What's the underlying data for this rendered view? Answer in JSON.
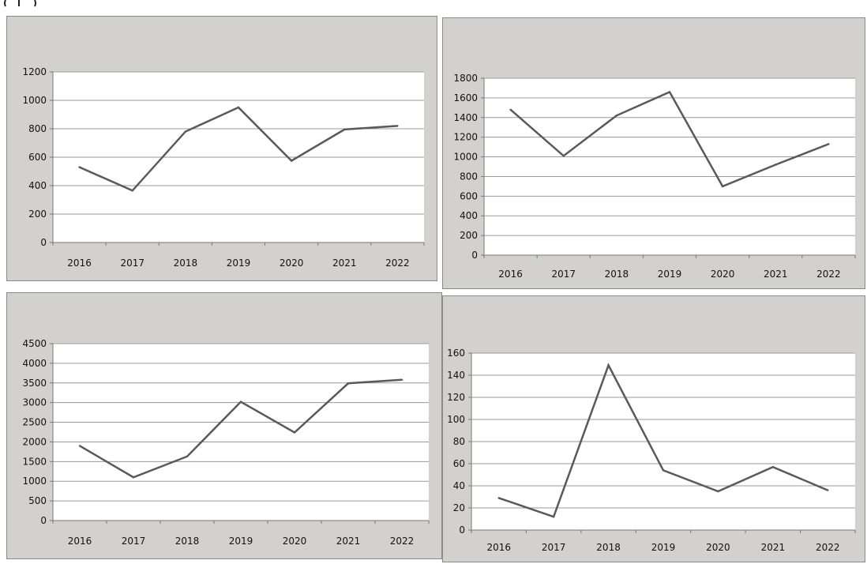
{
  "colors": {
    "panel_bg": "#d2d1cf",
    "plot_bg": "#ffffff",
    "gridline": "#9a9a9a",
    "series_line": "#595959",
    "axis": "#777777"
  },
  "chart_data": [
    {
      "type": "line",
      "categories": [
        "2016",
        "2017",
        "2018",
        "2019",
        "2020",
        "2021",
        "2022"
      ],
      "values": [
        530,
        365,
        780,
        950,
        575,
        795,
        820
      ],
      "yticks": [
        "0",
        "200",
        "400",
        "600",
        "800",
        "1000",
        "1200"
      ],
      "ylim": [
        0,
        1200
      ],
      "grid": true,
      "legend": "none"
    },
    {
      "type": "line",
      "categories": [
        "2016",
        "2017",
        "2018",
        "2019",
        "2020",
        "2021",
        "2022"
      ],
      "values": [
        1480,
        1010,
        1420,
        1660,
        700,
        920,
        1130
      ],
      "yticks": [
        "0",
        "200",
        "400",
        "600",
        "800",
        "1000",
        "1200",
        "1400",
        "1600",
        "1800"
      ],
      "ylim": [
        0,
        1800
      ],
      "grid": true,
      "legend": "none"
    },
    {
      "type": "line",
      "categories": [
        "2016",
        "2017",
        "2018",
        "2019",
        "2020",
        "2021",
        "2022"
      ],
      "values": [
        1900,
        1100,
        1630,
        3020,
        2240,
        3490,
        3580
      ],
      "yticks": [
        "0",
        "500",
        "1000",
        "1500",
        "2000",
        "2500",
        "3000",
        "3500",
        "4000",
        "4500"
      ],
      "ylim": [
        0,
        4500
      ],
      "grid": true,
      "legend": "none"
    },
    {
      "type": "line",
      "categories": [
        "2016",
        "2017",
        "2018",
        "2019",
        "2020",
        "2021",
        "2022"
      ],
      "values": [
        29,
        12,
        149,
        54,
        35,
        57,
        36
      ],
      "yticks": [
        "0",
        "20",
        "40",
        "60",
        "80",
        "100",
        "120",
        "140",
        "160"
      ],
      "ylim": [
        0,
        160
      ],
      "grid": true,
      "legend": "none"
    }
  ]
}
